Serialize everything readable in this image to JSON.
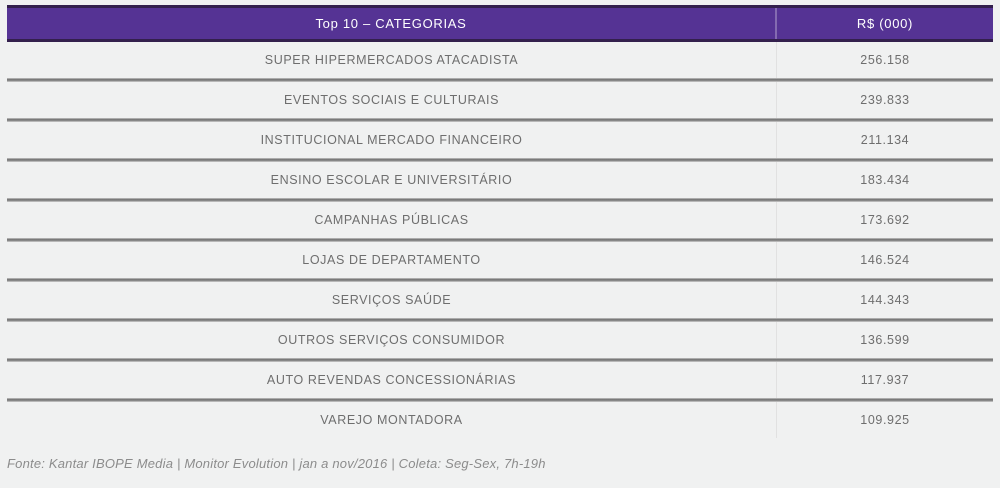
{
  "table": {
    "header": {
      "category_label": "Top 10 – CATEGORIAS",
      "value_label": "R$ (000)"
    },
    "rows": [
      {
        "category": "SUPER HIPERMERCADOS ATACADISTA",
        "value": "256.158"
      },
      {
        "category": "EVENTOS SOCIAIS E CULTURAIS",
        "value": "239.833"
      },
      {
        "category": "INSTITUCIONAL MERCADO FINANCEIRO",
        "value": "211.134"
      },
      {
        "category": "ENSINO ESCOLAR E UNIVERSITÁRIO",
        "value": "183.434"
      },
      {
        "category": "CAMPANHAS PÚBLICAS",
        "value": "173.692"
      },
      {
        "category": "LOJAS DE DEPARTAMENTO",
        "value": "146.524"
      },
      {
        "category": "SERVIÇOS SAÚDE",
        "value": "144.343"
      },
      {
        "category": "OUTROS SERVIÇOS CONSUMIDOR",
        "value": "136.599"
      },
      {
        "category": "AUTO REVENDAS CONCESSIONÁRIAS",
        "value": "117.937"
      },
      {
        "category": "VAREJO MONTADORA",
        "value": "109.925"
      }
    ]
  },
  "footer": {
    "source": "Fonte: Kantar IBOPE Media | Monitor Evolution | jan a nov/2016 | Coleta: Seg-Sex, 7h-19h"
  },
  "colors": {
    "header_bg": "#553394",
    "header_border": "#33204d",
    "header_text": "#ffffff",
    "row_text": "#6e6e6e",
    "separator": "#6f6f6f",
    "column_divider": "#e1e1e1",
    "footer_text": "#8c8c8c",
    "page_bg": "#f0f1f1"
  },
  "chart_data": {
    "type": "table",
    "title": "Top 10 – CATEGORIAS",
    "columns": [
      "Top 10 – CATEGORIAS",
      "R$ (000)"
    ],
    "categories": [
      "SUPER HIPERMERCADOS ATACADISTA",
      "EVENTOS SOCIAIS E CULTURAIS",
      "INSTITUCIONAL MERCADO FINANCEIRO",
      "ENSINO ESCOLAR E UNIVERSITÁRIO",
      "CAMPANHAS PÚBLICAS",
      "LOJAS DE DEPARTAMENTO",
      "SERVIÇOS SAÚDE",
      "OUTROS SERVIÇOS CONSUMIDOR",
      "AUTO REVENDAS CONCESSIONÁRIAS",
      "VAREJO MONTADORA"
    ],
    "values": [
      256158,
      239833,
      211134,
      183434,
      173692,
      146524,
      144343,
      136599,
      117937,
      109925
    ],
    "value_unit": "R$ thousand",
    "source_note": "Fonte: Kantar IBOPE Media | Monitor Evolution | jan a nov/2016 | Coleta: Seg-Sex, 7h-19h"
  }
}
